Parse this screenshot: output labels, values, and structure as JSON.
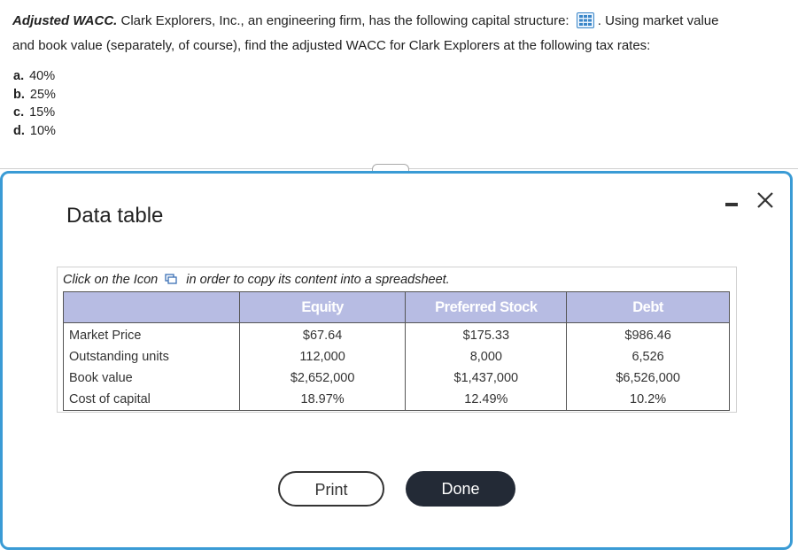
{
  "question": {
    "title": "Adjusted WACC.",
    "text_part1": "Clark Explorers, Inc., an engineering firm, has the following capital structure:",
    "text_part2": "Using market value",
    "text_line2": "and book value (separately, of course), find the adjusted WACC for Clark Explorers at the following tax rates:",
    "options": [
      {
        "letter": "a.",
        "value": "40%"
      },
      {
        "letter": "b.",
        "value": "25%"
      },
      {
        "letter": "c.",
        "value": "15%"
      },
      {
        "letter": "d.",
        "value": "10%"
      }
    ]
  },
  "dialog": {
    "title": "Data table",
    "instruction_part1": "Click on the Icon",
    "instruction_part2": "in order to copy its content into a spreadsheet.",
    "table": {
      "headers": [
        "",
        "Equity",
        "Preferred Stock",
        "Debt"
      ],
      "rows": [
        [
          "Market Price",
          "$67.64",
          "$175.33",
          "$986.46"
        ],
        [
          "Outstanding units",
          "112,000",
          "8,000",
          "6,526"
        ],
        [
          "Book value",
          "$2,652,000",
          "$1,437,000",
          "$6,526,000"
        ],
        [
          "Cost of capital",
          "18.97%",
          "12.49%",
          "10.2%"
        ]
      ]
    },
    "print_label": "Print",
    "done_label": "Done"
  },
  "icons": {
    "table": "table-grid-icon",
    "copy": "copy-icon",
    "minimize": "minimize-icon",
    "close": "close-icon"
  },
  "colors": {
    "accent": "#3a9bd5",
    "table_header": "#b7bce3",
    "done_button": "#232a36"
  }
}
